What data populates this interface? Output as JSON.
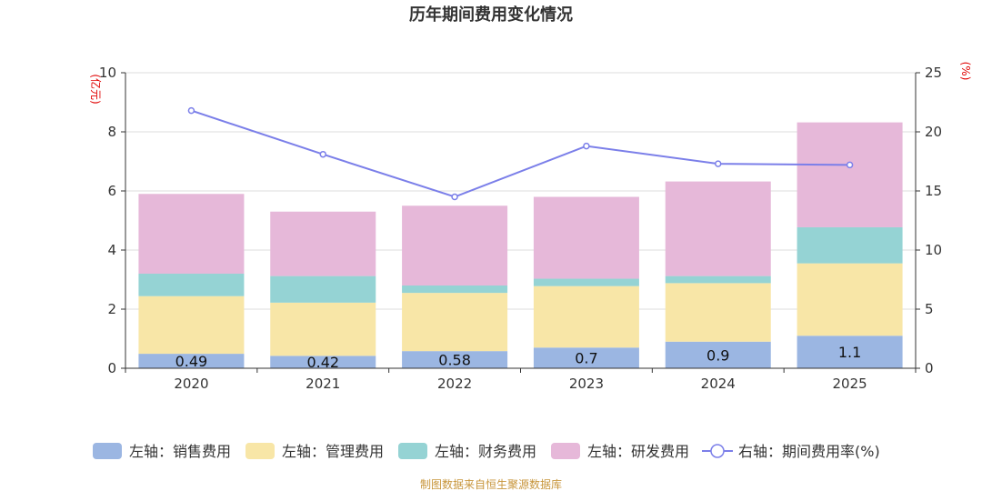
{
  "chart_data": {
    "type": "bar",
    "stacked": true,
    "title": "历年期间费用变化情况",
    "categories": [
      "2020",
      "2021",
      "2022",
      "2023",
      "2024",
      "2025"
    ],
    "left_axis": {
      "unit": "(亿元)",
      "range": [
        0,
        10
      ],
      "ticks": [
        "0",
        "2",
        "4",
        "6",
        "8",
        "10"
      ]
    },
    "right_axis": {
      "unit": "(%)",
      "range": [
        0,
        25
      ],
      "ticks": [
        "0",
        "5",
        "10",
        "15",
        "20",
        "25"
      ]
    },
    "series": [
      {
        "name": "左轴：销售费用",
        "type": "bar",
        "color": "#9bb6e2",
        "values": [
          0.49,
          0.42,
          0.58,
          0.7,
          0.9,
          1.1
        ],
        "labels": [
          "0.49",
          "0.42",
          "0.58",
          "0.7",
          "0.9",
          "1.1"
        ]
      },
      {
        "name": "左轴：管理费用",
        "type": "bar",
        "color": "#f8e6a7",
        "values": [
          1.95,
          1.8,
          1.97,
          2.08,
          1.98,
          2.45
        ]
      },
      {
        "name": "左轴：财务费用",
        "type": "bar",
        "color": "#95d3d4",
        "values": [
          0.76,
          0.9,
          0.25,
          0.25,
          0.24,
          1.22
        ]
      },
      {
        "name": "左轴：研发费用",
        "type": "bar",
        "color": "#e6b8d9",
        "values": [
          2.7,
          2.18,
          2.7,
          2.77,
          3.2,
          3.55
        ]
      },
      {
        "name": "右轴：期间费用率(%)",
        "type": "line",
        "axis": "right",
        "color": "#7b7fe9",
        "values": [
          21.8,
          18.1,
          14.5,
          18.8,
          17.3,
          17.2
        ]
      }
    ],
    "grid": true,
    "legend_position": "bottom",
    "source": "制图数据来自恒生聚源数据库"
  }
}
